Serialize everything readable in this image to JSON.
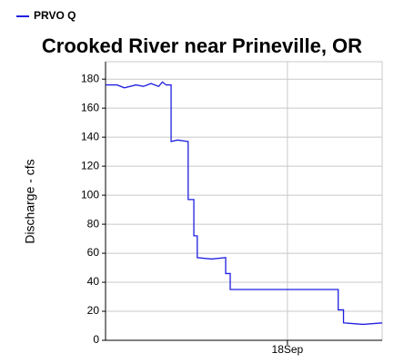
{
  "chart_data": {
    "type": "line",
    "title": "Crooked River near Prineville, OR",
    "ylabel": "Discharge - cfs",
    "x": [
      0,
      3,
      5,
      8,
      10,
      12,
      14,
      15,
      16,
      17.3,
      17.3,
      19,
      21.8,
      21.8,
      23.3,
      23.3,
      24.2,
      24.2,
      28,
      31.7,
      31.7,
      32.9,
      32.9,
      45,
      61.4,
      61.4,
      62.8,
      62.8,
      68,
      73
    ],
    "series": [
      {
        "name": "PRVO Q",
        "color": "#1f1fe0",
        "values": [
          176,
          176,
          174,
          176,
          175,
          177,
          175,
          178,
          176,
          176,
          137,
          138,
          137,
          97,
          97,
          72,
          72,
          57,
          56,
          57,
          46,
          46,
          35,
          35,
          35,
          21,
          21,
          12,
          11,
          12
        ]
      }
    ],
    "xlim": [
      0,
      73
    ],
    "xticks": [
      {
        "value": 48,
        "label": "18Sep"
      }
    ],
    "ylim": [
      0,
      192
    ],
    "yticks": [
      0,
      20,
      40,
      60,
      80,
      100,
      120,
      140,
      160,
      180
    ],
    "grid": true,
    "legend": "top-left"
  }
}
